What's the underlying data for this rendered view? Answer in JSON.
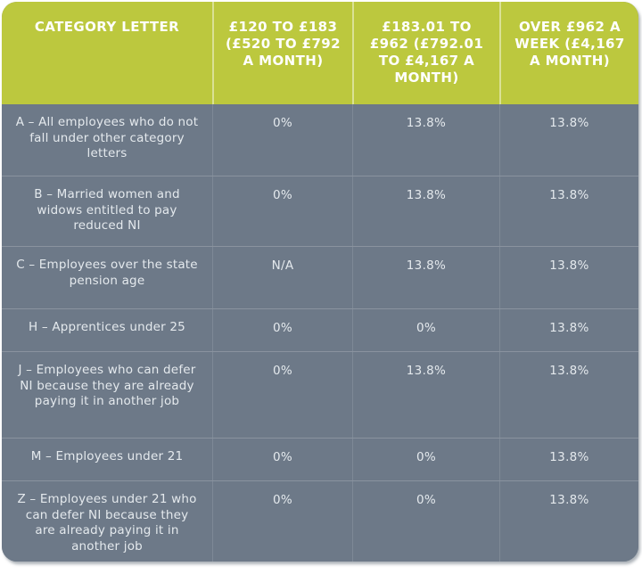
{
  "chart_data": {
    "type": "table",
    "columns": [
      "CATEGORY LETTER",
      "£120 TO £183 (£520 TO £792 A MONTH)",
      "£183.01 TO £962 (£792.01 TO £4,167 A MONTH)",
      "OVER £962 A WEEK (£4,167 A MONTH)"
    ],
    "rows": [
      {
        "label": "A – All employees who do not fall under other category letters",
        "values": [
          "0%",
          "13.8%",
          "13.8%"
        ]
      },
      {
        "label": "B – Married women and widows entitled to pay reduced NI",
        "values": [
          "0%",
          "13.8%",
          "13.8%"
        ]
      },
      {
        "label": "C – Employees over the state pension age",
        "values": [
          "N/A",
          "13.8%",
          "13.8%"
        ]
      },
      {
        "label": "H – Apprentices under 25",
        "values": [
          "0%",
          "0%",
          "13.8%"
        ]
      },
      {
        "label": "J – Employees who can defer NI because they are already paying it in another job",
        "values": [
          "0%",
          "13.8%",
          "13.8%"
        ]
      },
      {
        "label": "M – Employees under 21",
        "values": [
          "0%",
          "0%",
          "13.8%"
        ]
      },
      {
        "label": "Z – Employees under 21 who can defer NI because they are already paying it in another job",
        "values": [
          "0%",
          "0%",
          "13.8%"
        ]
      }
    ],
    "layout": {
      "legend": "none",
      "grid": "light divider lines between rows and columns"
    },
    "colors": {
      "header_bg": "#bcc83e",
      "body_bg": "#6d7988",
      "header_text": "#ffffff",
      "body_text": "#e4e9ed",
      "page_bg": "#ffffff"
    }
  }
}
